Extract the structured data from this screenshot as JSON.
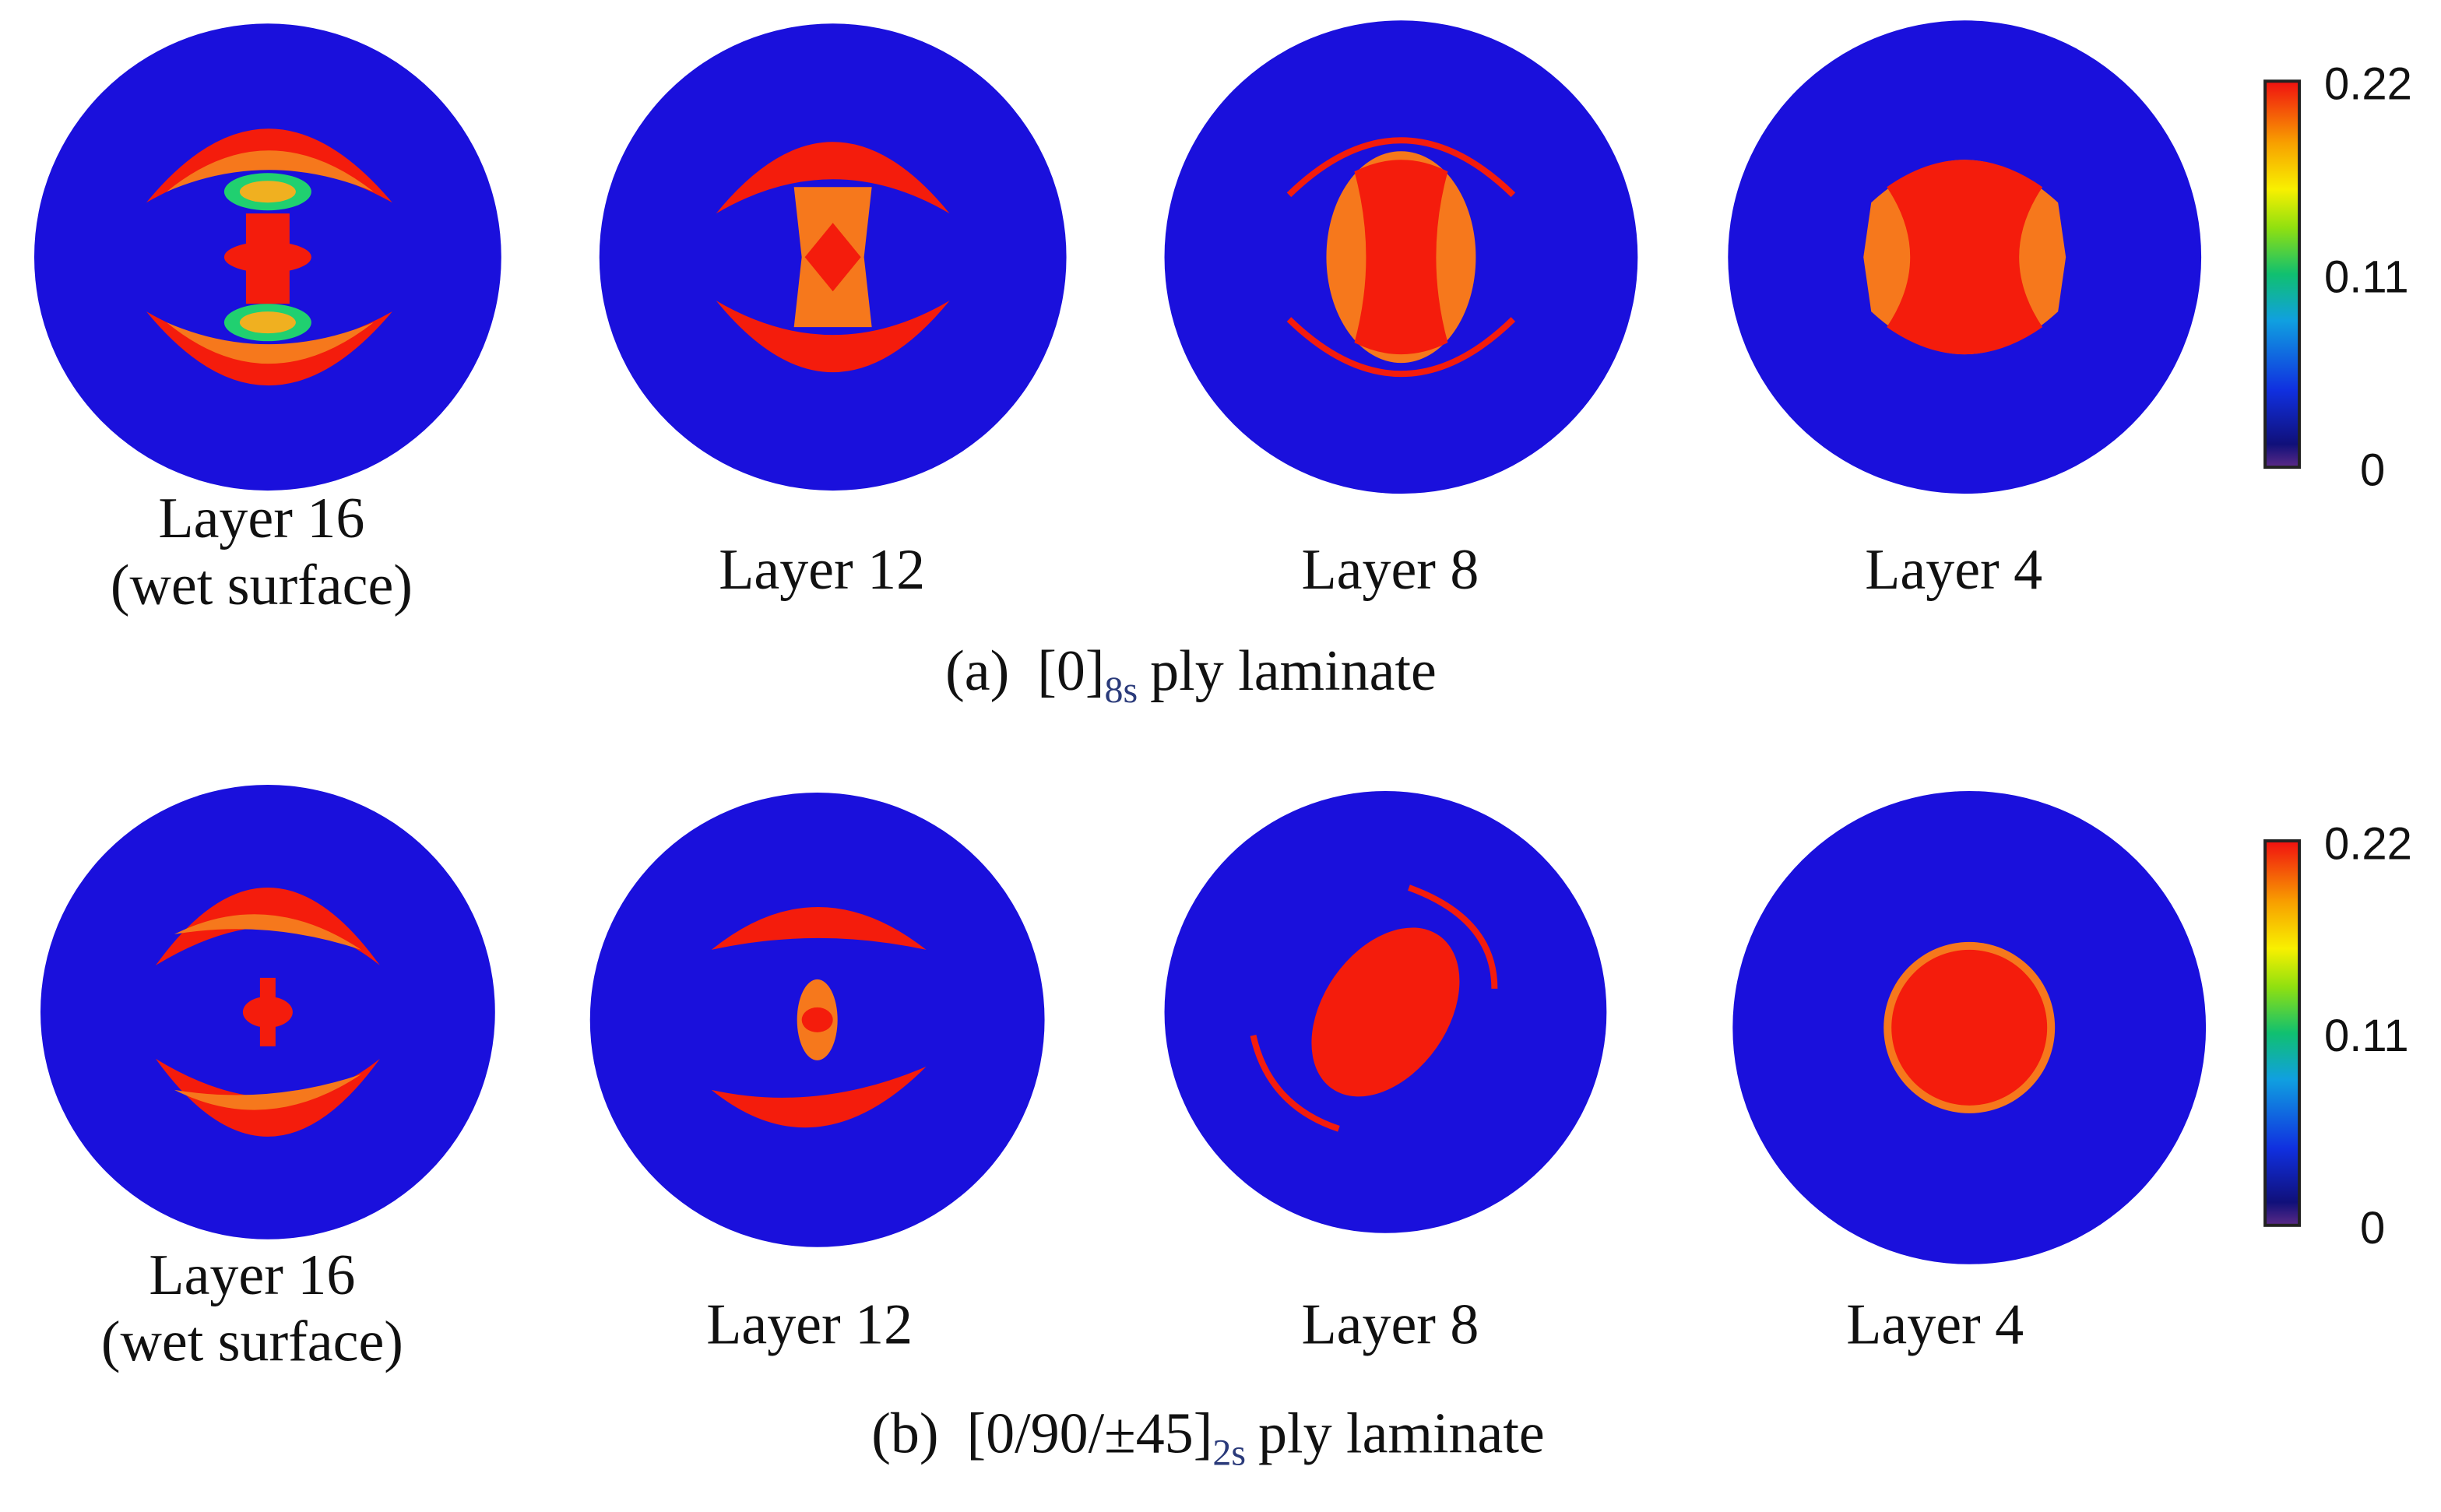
{
  "panels": [
    {
      "layers": [
        {
          "label": "Layer 16",
          "note": "(wet surface)"
        },
        {
          "label": "Layer 12"
        },
        {
          "label": "Layer 8"
        },
        {
          "label": "Layer 4"
        }
      ],
      "caption": {
        "label": "(a)",
        "layup": "[0]",
        "subscript": "8s",
        "suffix": "ply laminate"
      },
      "colorbar": {
        "range": [
          0,
          0.22
        ],
        "ticks": [
          0,
          0.11,
          0.22
        ]
      }
    },
    {
      "layers": [
        {
          "label": "Layer 16",
          "note": "(wet surface)"
        },
        {
          "label": "Layer 12"
        },
        {
          "label": "Layer 8"
        },
        {
          "label": "Layer 4"
        }
      ],
      "caption": {
        "label": "(b)",
        "layup": "[0/90/±45]",
        "subscript": "2s",
        "suffix": "ply laminate"
      },
      "colorbar": {
        "range": [
          0,
          0.22
        ],
        "ticks": [
          0,
          0.11,
          0.22
        ]
      }
    }
  ]
}
